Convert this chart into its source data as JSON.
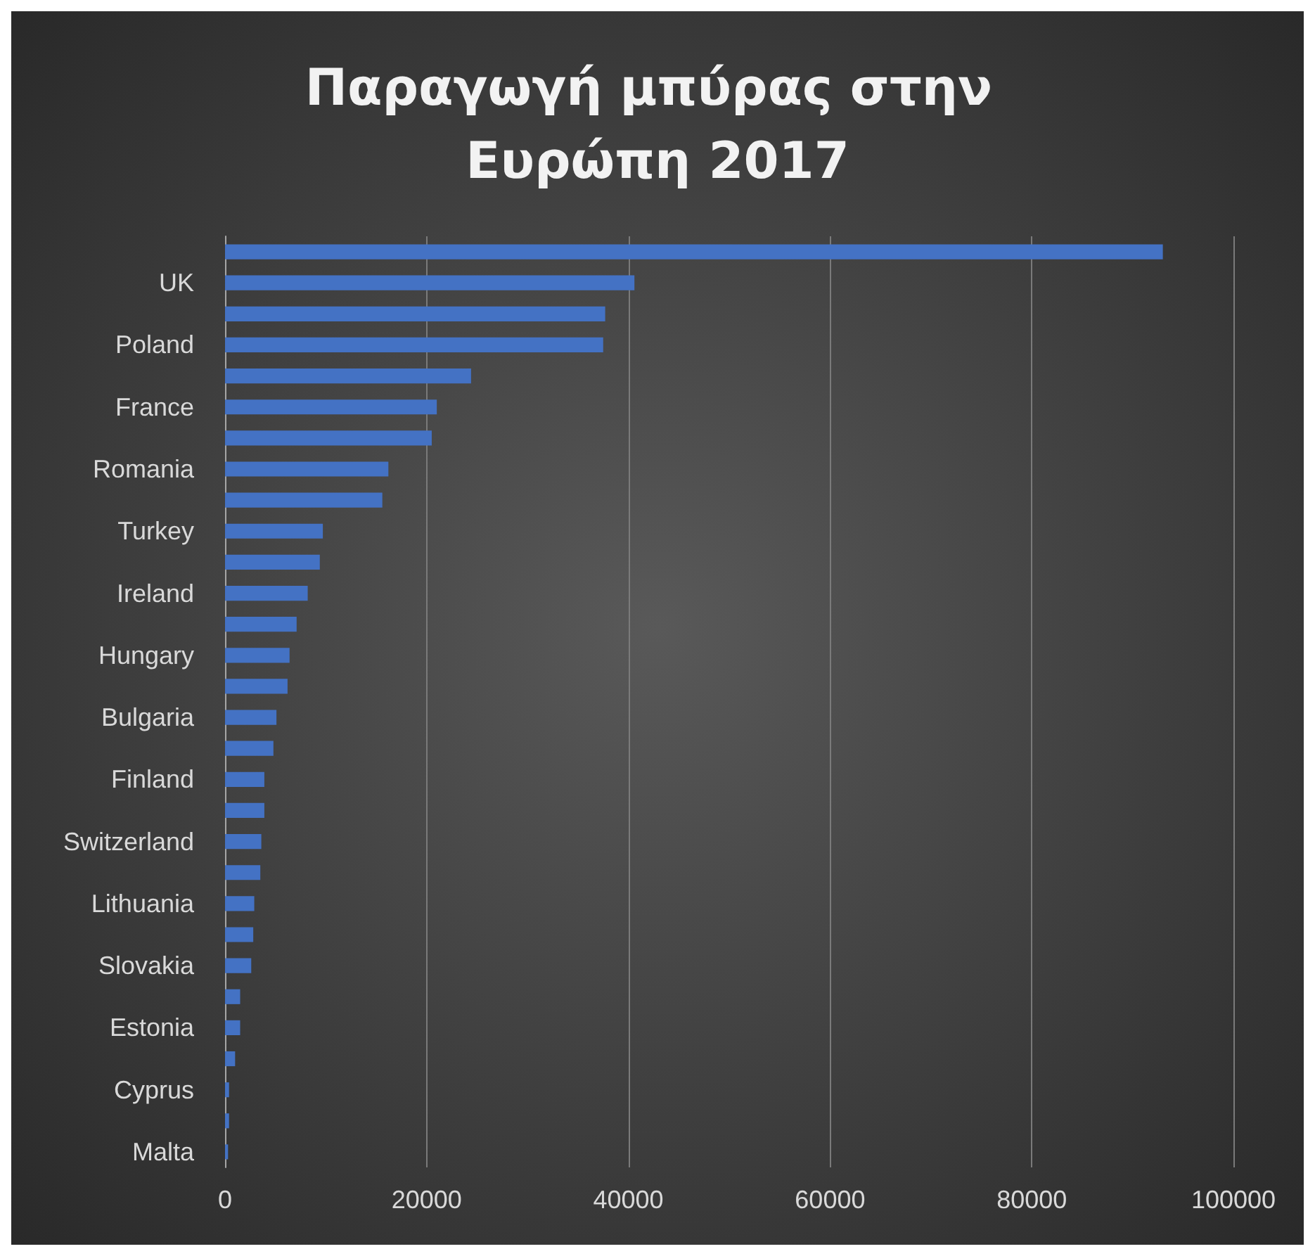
{
  "chart_data": {
    "type": "bar",
    "orientation": "horizontal",
    "title": "Παραγωγή μπύρας στην Ευρώπη 2017",
    "categories": [
      null,
      "UK",
      null,
      "Poland",
      null,
      "France",
      null,
      "Romania",
      null,
      "Turkey",
      null,
      "Ireland",
      null,
      "Hungary",
      null,
      "Bulgaria",
      null,
      "Finland",
      null,
      "Switzerland",
      null,
      "Lithuania",
      null,
      "Slovakia",
      null,
      "Estonia",
      null,
      "Cyprus",
      null,
      "Malta"
    ],
    "values": [
      93000,
      40600,
      37700,
      37500,
      24400,
      21000,
      20500,
      16200,
      15600,
      9700,
      9400,
      8200,
      7100,
      6400,
      6200,
      5100,
      4800,
      3900,
      3900,
      3600,
      3500,
      2900,
      2800,
      2600,
      1500,
      1500,
      1000,
      400,
      400,
      300
    ],
    "color": "#4472c4",
    "xlim": [
      0,
      100000
    ],
    "xticks": [
      0,
      20000,
      40000,
      60000,
      80000,
      100000
    ],
    "grid": "x"
  }
}
